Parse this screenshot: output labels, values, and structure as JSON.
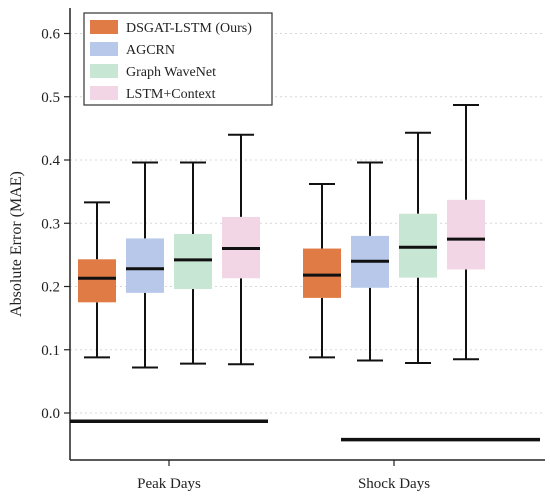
{
  "chart_data": {
    "type": "box",
    "ylabel": "Absolute Error (MAE)",
    "ylim": [
      -0.07,
      0.65
    ],
    "yticks": [
      "0.0",
      "0.1",
      "0.2",
      "0.3",
      "0.4",
      "0.5",
      "0.6"
    ],
    "grid": "horizontal dotted",
    "legend_position": "top-left",
    "categories": [
      "Peak Days",
      "Shock Days"
    ],
    "series": [
      {
        "name": "DSGAT-LSTM (Ours)",
        "color": "#E07B45",
        "boxes": [
          {
            "min": 0.088,
            "q1": 0.175,
            "median": 0.213,
            "q3": 0.243,
            "max": 0.333
          },
          {
            "min": 0.088,
            "q1": 0.182,
            "median": 0.218,
            "q3": 0.26,
            "max": 0.362
          }
        ]
      },
      {
        "name": "AGCRN",
        "color": "#B8C8EA",
        "boxes": [
          {
            "min": 0.072,
            "q1": 0.19,
            "median": 0.228,
            "q3": 0.276,
            "max": 0.396
          },
          {
            "min": 0.083,
            "q1": 0.198,
            "median": 0.24,
            "q3": 0.28,
            "max": 0.396
          }
        ]
      },
      {
        "name": "Graph WaveNet",
        "color": "#C8E6D4",
        "boxes": [
          {
            "min": 0.078,
            "q1": 0.196,
            "median": 0.242,
            "q3": 0.283,
            "max": 0.396
          },
          {
            "min": 0.079,
            "q1": 0.214,
            "median": 0.262,
            "q3": 0.315,
            "max": 0.443
          }
        ]
      },
      {
        "name": "LSTM+Context",
        "color": "#F3D6E5",
        "boxes": [
          {
            "min": 0.077,
            "q1": 0.213,
            "median": 0.26,
            "q3": 0.31,
            "max": 0.44
          },
          {
            "min": 0.085,
            "q1": 0.227,
            "median": 0.275,
            "q3": 0.337,
            "max": 0.487
          }
        ]
      }
    ],
    "baselines": [
      {
        "group": "Peak Days",
        "value": -0.013
      },
      {
        "group": "Shock Days",
        "value": -0.042
      }
    ]
  }
}
